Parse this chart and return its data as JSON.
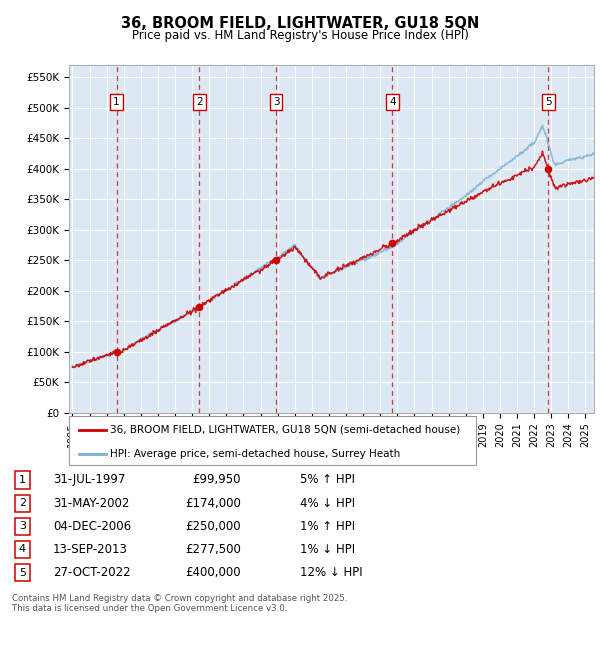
{
  "title": "36, BROOM FIELD, LIGHTWATER, GU18 5QN",
  "subtitle": "Price paid vs. HM Land Registry's House Price Index (HPI)",
  "ylabel_ticks": [
    "£0",
    "£50K",
    "£100K",
    "£150K",
    "£200K",
    "£250K",
    "£300K",
    "£350K",
    "£400K",
    "£450K",
    "£500K",
    "£550K"
  ],
  "ylim": [
    0,
    570000
  ],
  "xlim_start": 1994.8,
  "xlim_end": 2025.5,
  "bg_color": "#dce9f5",
  "grid_color": "#ffffff",
  "sale_points": [
    {
      "num": 1,
      "year": 1997.58,
      "price": 99950,
      "label": "31-JUL-1997",
      "amount": "£99,950",
      "hpi_pct": "5%",
      "hpi_dir": "↑"
    },
    {
      "num": 2,
      "year": 2002.42,
      "price": 174000,
      "label": "31-MAY-2002",
      "amount": "£174,000",
      "hpi_pct": "4%",
      "hpi_dir": "↓"
    },
    {
      "num": 3,
      "year": 2006.92,
      "price": 250000,
      "label": "04-DEC-2006",
      "amount": "£250,000",
      "hpi_pct": "1%",
      "hpi_dir": "↑"
    },
    {
      "num": 4,
      "year": 2013.71,
      "price": 277500,
      "label": "13-SEP-2013",
      "amount": "£277,500",
      "hpi_pct": "1%",
      "hpi_dir": "↓"
    },
    {
      "num": 5,
      "year": 2022.83,
      "price": 400000,
      "label": "27-OCT-2022",
      "amount": "£400,000",
      "hpi_pct": "12%",
      "hpi_dir": "↓"
    }
  ],
  "legend_line1": "36, BROOM FIELD, LIGHTWATER, GU18 5QN (semi-detached house)",
  "legend_line2": "HPI: Average price, semi-detached house, Surrey Heath",
  "footnote": "Contains HM Land Registry data © Crown copyright and database right 2025.\nThis data is licensed under the Open Government Licence v3.0.",
  "red_color": "#cc0000",
  "blue_color": "#7bafd4",
  "dashed_color": "#cc0000"
}
